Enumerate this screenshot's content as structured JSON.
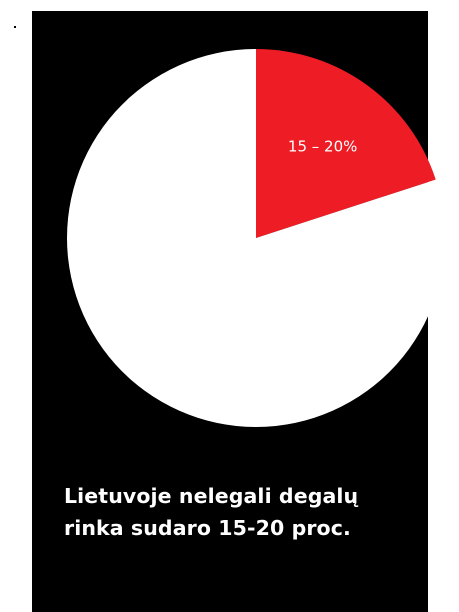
{
  "chart_data": {
    "type": "pie",
    "title": "",
    "slices": [
      {
        "label": "15 – 20%",
        "value": 20,
        "color": "#EE1C25"
      },
      {
        "label": "",
        "value": 80,
        "color": "#FFFFFF"
      }
    ],
    "start_angle_deg": 0,
    "direction": "clockwise"
  },
  "caption": {
    "line1": "Lietuvoje nelegali degalų",
    "line2": "rinka sudaro 15-20 proc."
  },
  "colors": {
    "background": "#000000",
    "accent": "#EE1C25",
    "pie_rest": "#FFFFFF",
    "text": "#FFFFFF"
  }
}
